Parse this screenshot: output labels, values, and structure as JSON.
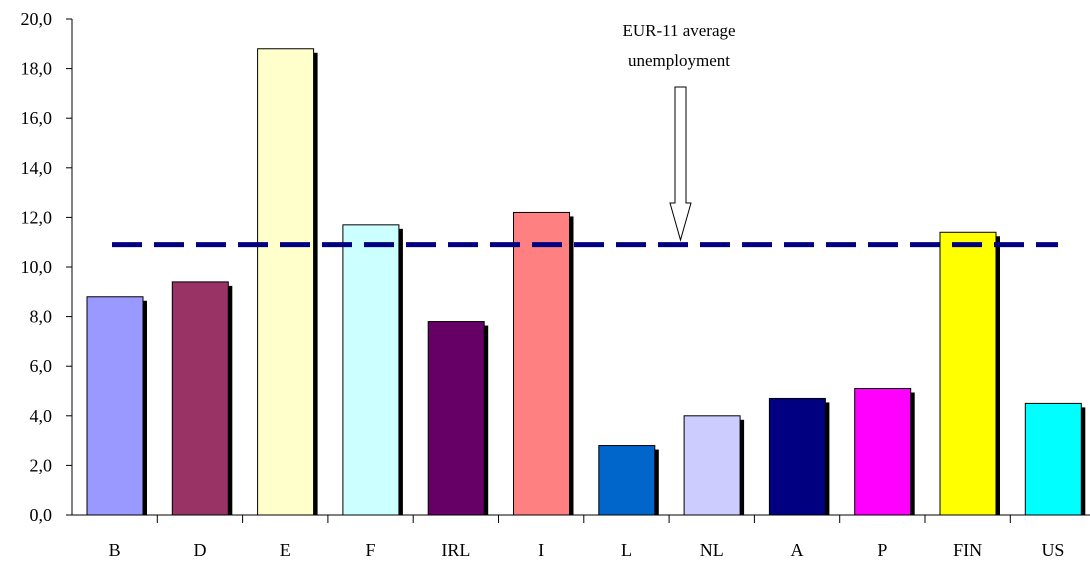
{
  "chart_data": {
    "type": "bar",
    "categories": [
      "B",
      "D",
      "E",
      "F",
      "IRL",
      "I",
      "L",
      "NL",
      "A",
      "P",
      "FIN",
      "US"
    ],
    "values": [
      8.8,
      9.4,
      18.8,
      11.7,
      7.8,
      12.2,
      2.8,
      4.0,
      4.7,
      5.1,
      11.4,
      4.5
    ],
    "bar_colors": [
      "#9999ff",
      "#993366",
      "#ffffcc",
      "#ccffff",
      "#660066",
      "#ff8080",
      "#0066cc",
      "#ccccff",
      "#000080",
      "#ff00ff",
      "#ffff00",
      "#00ffff"
    ],
    "ylim": [
      0,
      20
    ],
    "ytick_step": 2,
    "ytick_labels": [
      "0,0",
      "2,0",
      "4,0",
      "6,0",
      "8,0",
      "10,0",
      "12,0",
      "14,0",
      "16,0",
      "18,0",
      "20,0"
    ],
    "reference_line": {
      "value": 10.9,
      "color": "#000080",
      "style": "dashed"
    },
    "annotation": {
      "lines": [
        "EUR-11 average",
        "unemployment"
      ]
    },
    "title": "",
    "xlabel": "",
    "ylabel": "",
    "grid": false,
    "legend": "none"
  }
}
